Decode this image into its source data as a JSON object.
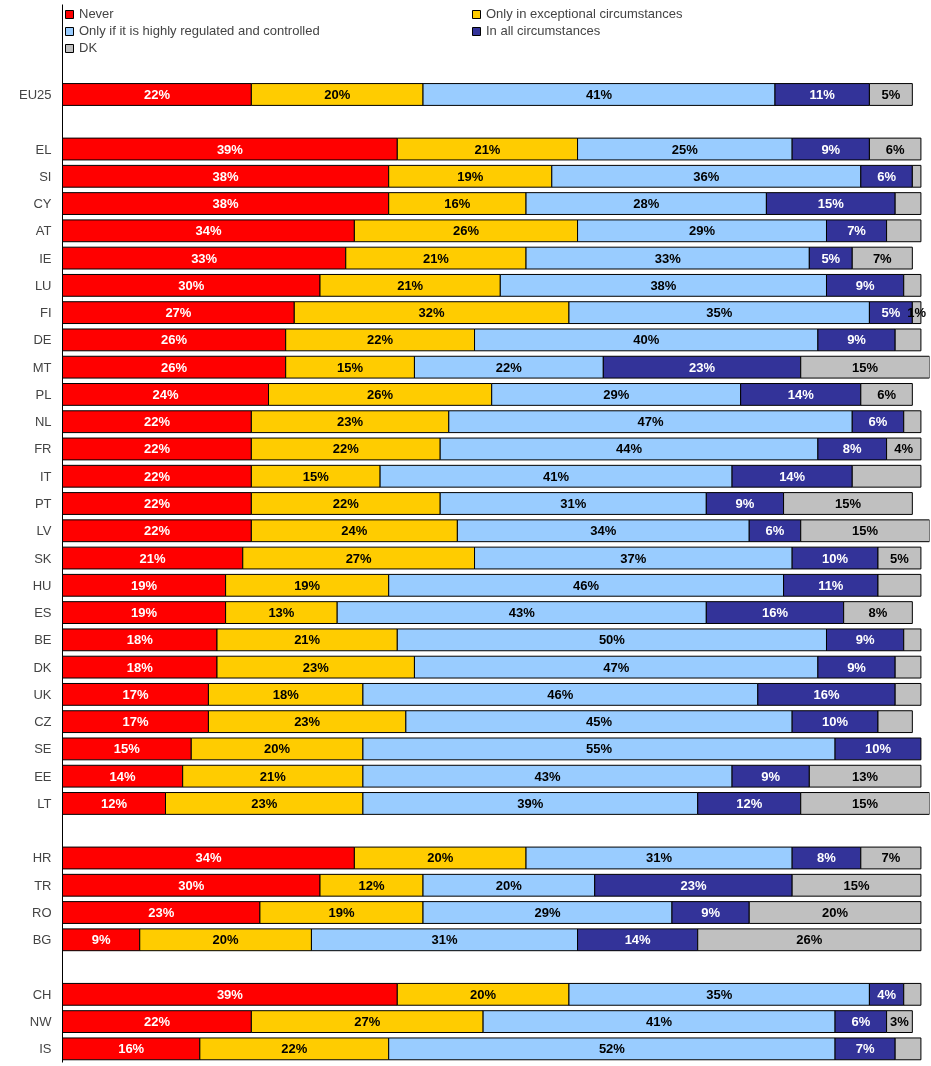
{
  "chart_data": {
    "type": "bar",
    "orientation": "horizontal",
    "stacked": true,
    "legend": "top",
    "grid": false,
    "tick_labels": "y",
    "xlim": [
      0,
      101
    ],
    "categories": [
      "EU25",
      null,
      "EL",
      "SI",
      "CY",
      "AT",
      "IE",
      "LU",
      "FI",
      "DE",
      "MT",
      "PL",
      "NL",
      "FR",
      "IT",
      "PT",
      "LV",
      "SK",
      "HU",
      "ES",
      "BE",
      "DK",
      "UK",
      "CZ",
      "SE",
      "EE",
      "LT",
      null,
      "HR",
      "TR",
      "RO",
      "BG",
      null,
      "CH",
      "NW",
      "IS"
    ],
    "series": [
      {
        "name": "Never",
        "color": "#ff0000",
        "values": [
          22,
          null,
          39,
          38,
          38,
          34,
          33,
          30,
          27,
          26,
          26,
          24,
          22,
          22,
          22,
          22,
          22,
          21,
          19,
          19,
          18,
          18,
          17,
          17,
          15,
          14,
          12,
          null,
          34,
          30,
          23,
          9,
          null,
          39,
          22,
          16
        ],
        "value_labels": [
          "22%",
          null,
          "39%",
          "38%",
          "38%",
          "34%",
          "33%",
          "30%",
          "27%",
          "26%",
          "26%",
          "24%",
          "22%",
          "22%",
          "22%",
          "22%",
          "22%",
          "21%",
          "19%",
          "19%",
          "18%",
          "18%",
          "17%",
          "17%",
          "15%",
          "14%",
          "12%",
          null,
          "34%",
          "30%",
          "23%",
          "9%",
          null,
          "39%",
          "22%",
          "16%"
        ]
      },
      {
        "name": "Only in exceptional circumstances",
        "color": "#ffcc00",
        "values": [
          20,
          null,
          21,
          19,
          16,
          26,
          21,
          21,
          32,
          22,
          15,
          26,
          23,
          22,
          15,
          22,
          24,
          27,
          19,
          13,
          21,
          23,
          18,
          23,
          20,
          21,
          23,
          null,
          20,
          12,
          19,
          20,
          null,
          20,
          27,
          22
        ],
        "value_labels": [
          "20%",
          null,
          "21%",
          "19%",
          "16%",
          "26%",
          "21%",
          "21%",
          "32%",
          "22%",
          "15%",
          "26%",
          "23%",
          "22%",
          "15%",
          "22%",
          "24%",
          "27%",
          "19%",
          "13%",
          "21%",
          "23%",
          "18%",
          "23%",
          "20%",
          "21%",
          "23%",
          null,
          "20%",
          "12%",
          "19%",
          "20%",
          null,
          "20%",
          "27%",
          "22%"
        ]
      },
      {
        "name": "Only if it is highly regulated and controlled",
        "color": "#99ccff",
        "values": [
          41,
          null,
          25,
          36,
          28,
          29,
          33,
          38,
          35,
          40,
          22,
          29,
          47,
          44,
          41,
          31,
          34,
          37,
          46,
          43,
          50,
          47,
          46,
          45,
          55,
          43,
          39,
          null,
          31,
          20,
          29,
          31,
          null,
          35,
          41,
          52
        ],
        "value_labels": [
          "41%",
          null,
          "25%",
          "36%",
          "28%",
          "29%",
          "33%",
          "38%",
          "35%",
          "40%",
          "22%",
          "29%",
          "47%",
          "44%",
          "41%",
          "31%",
          "34%",
          "37%",
          "46%",
          "43%",
          "50%",
          "47%",
          "46%",
          "45%",
          "55%",
          "43%",
          "39%",
          null,
          "31%",
          "20%",
          "29%",
          "31%",
          null,
          "35%",
          "41%",
          "52%"
        ]
      },
      {
        "name": "In all circumstances",
        "color": "#333399",
        "values": [
          11,
          null,
          9,
          6,
          15,
          7,
          5,
          9,
          5,
          9,
          23,
          14,
          6,
          8,
          14,
          9,
          6,
          10,
          11,
          16,
          9,
          9,
          16,
          10,
          10,
          9,
          12,
          null,
          8,
          23,
          9,
          14,
          null,
          4,
          6,
          7
        ],
        "value_labels": [
          "11%",
          null,
          "9%",
          "6%",
          "15%",
          "7%",
          "5%",
          "9%",
          "5%",
          "9%",
          "23%",
          "14%",
          "6%",
          "8%",
          "14%",
          "9%",
          "6%",
          "10%",
          "11%",
          "16%",
          "9%",
          "9%",
          "16%",
          "10%",
          "10%",
          "9%",
          "12%",
          null,
          "8%",
          "23%",
          "9%",
          "14%",
          null,
          "4%",
          "6%",
          "7%"
        ]
      },
      {
        "name": "DK",
        "color": "#c0c0c0",
        "values": [
          5,
          null,
          6,
          1,
          3,
          4,
          7,
          2,
          1,
          3,
          15,
          6,
          2,
          4,
          8,
          15,
          15,
          5,
          5,
          8,
          2,
          3,
          3,
          4,
          null,
          13,
          15,
          null,
          7,
          15,
          20,
          26,
          null,
          2,
          3,
          3
        ],
        "value_labels": [
          "5%",
          null,
          "6%",
          null,
          null,
          null,
          "7%",
          null,
          "1%",
          null,
          "15%",
          "6%",
          null,
          "4%",
          null,
          "15%",
          "15%",
          "5%",
          null,
          "8%",
          null,
          null,
          null,
          null,
          null,
          "13%",
          "15%",
          null,
          "7%",
          "15%",
          "20%",
          "26%",
          null,
          null,
          "3%",
          null
        ]
      }
    ]
  }
}
